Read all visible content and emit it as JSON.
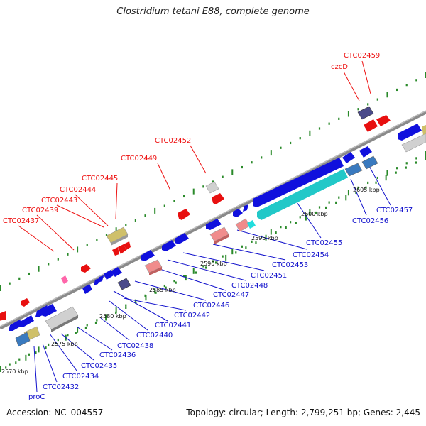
{
  "title": "Clostridium tetani E88, complete genome",
  "footer": {
    "accession": "Accession: NC_004557",
    "summary": "Topology: circular; Length: 2,799,251 bp; Genes: 2,445"
  },
  "colors": {
    "forward_label": "#ee1111",
    "reverse_label": "#1111cc",
    "backbone": "#888888",
    "tick": "#2a8a2a"
  },
  "kbp_labels": [
    "2570 kbp",
    "2575 kbp",
    "2580 kbp",
    "2585 kbp",
    "2590 kbp",
    "2595 kbp",
    "2600 kbp",
    "2605 kbp"
  ],
  "top_labels": [
    "CTC02437",
    "CTC02439",
    "CTC02443",
    "CTC02444",
    "CTC02445",
    "CTC02449",
    "CTC02452",
    "czcD",
    "CTC02459"
  ],
  "bottom_labels": [
    "proC",
    "CTC02432",
    "CTC02434",
    "CTC02435",
    "CTC02436",
    "CTC02438",
    "CTC02440",
    "CTC02441",
    "CTC02442",
    "CTC02446",
    "CTC02447",
    "CTC02448",
    "CTC02451",
    "CTC02453",
    "CTC02454",
    "CTC02455",
    "CTC02456",
    "CTC02457"
  ]
}
